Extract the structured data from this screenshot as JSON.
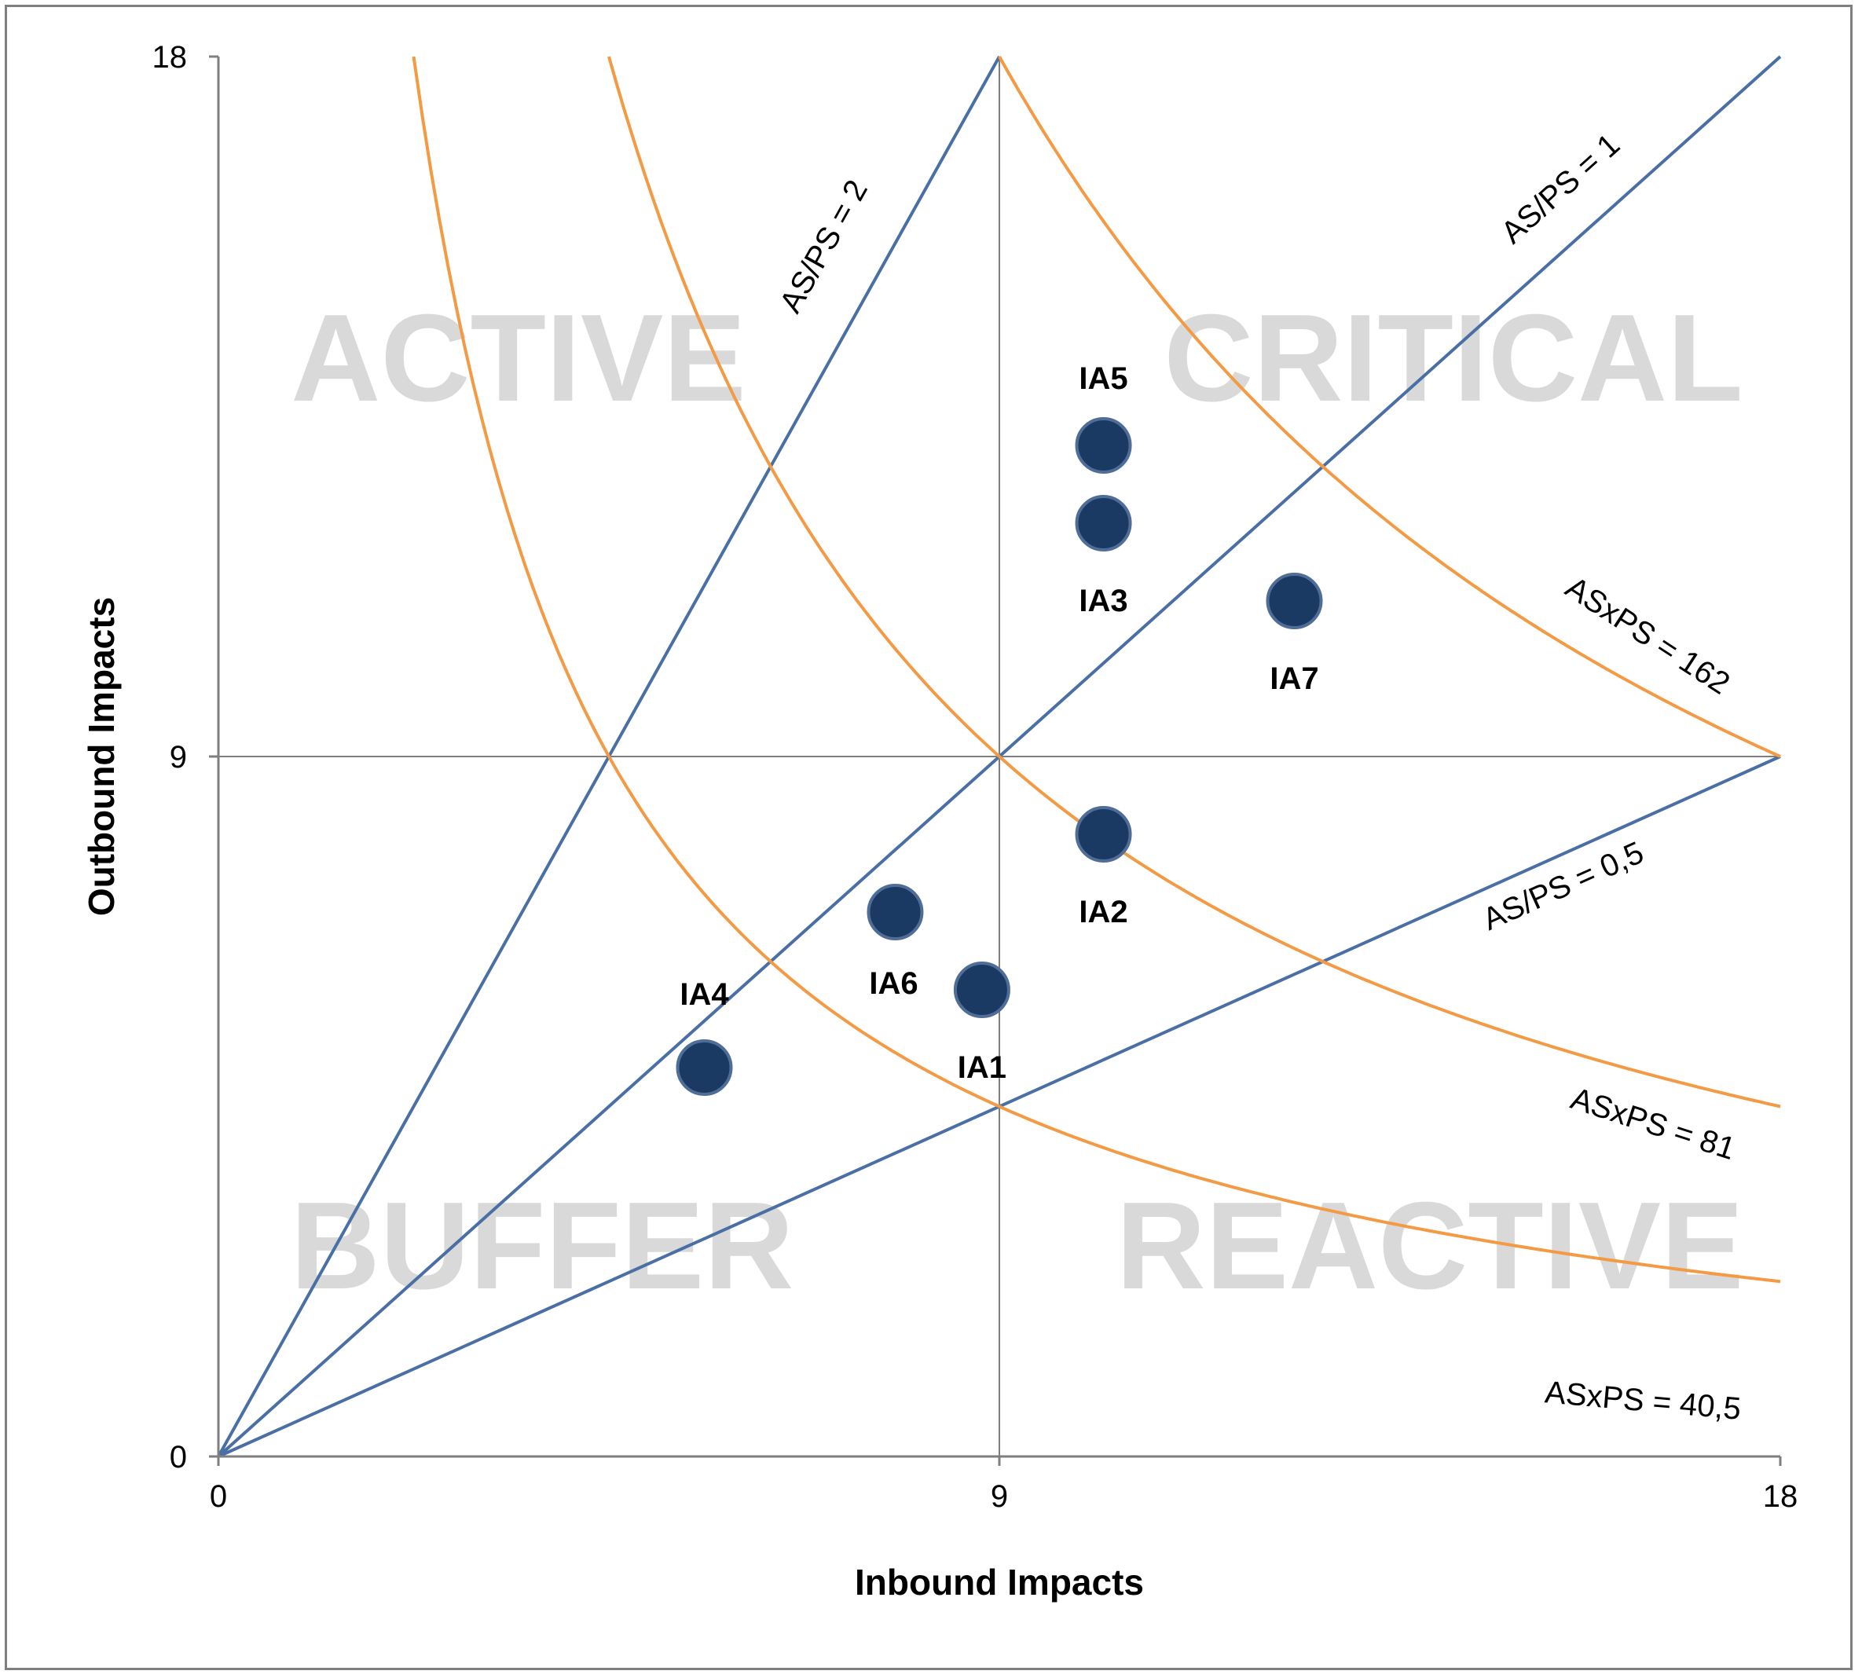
{
  "chart_data": {
    "type": "scatter",
    "xlabel": "Inbound Impacts",
    "ylabel": "Outbound Impacts",
    "xlim": [
      0,
      18
    ],
    "ylim": [
      0,
      18
    ],
    "xticks": [
      0,
      9,
      18
    ],
    "yticks": [
      0,
      9,
      18
    ],
    "quadrant_lines": {
      "x": 9,
      "y": 9
    },
    "colors": {
      "points": "#1b3a63",
      "ratio_lines": "#4a6fa5",
      "product_curves": "#f39a45",
      "quadrant_text": "#d9d9d9",
      "grid": "#7f7f7f"
    },
    "quadrant_labels": [
      {
        "text": "ACTIVE",
        "position": "top-left"
      },
      {
        "text": "CRITICAL",
        "position": "top-right"
      },
      {
        "text": "BUFFER",
        "position": "bottom-left"
      },
      {
        "text": "REACTIVE",
        "position": "bottom-right"
      }
    ],
    "ratio_lines": [
      {
        "label": "AS/PS = 2",
        "slope": 2
      },
      {
        "label": "AS/PS = 1",
        "slope": 1
      },
      {
        "label": "AS/PS = 0,5",
        "slope": 0.5
      }
    ],
    "product_curves": [
      {
        "label": "ASxPS = 162",
        "product": 162
      },
      {
        "label": "ASxPS = 81",
        "product": 81
      },
      {
        "label": "ASxPS = 40,5",
        "product": 40.5
      }
    ],
    "points": [
      {
        "label": "IA1",
        "x": 8.8,
        "y": 6.0
      },
      {
        "label": "IA2",
        "x": 10.2,
        "y": 8.0
      },
      {
        "label": "IA3",
        "x": 10.2,
        "y": 12.0
      },
      {
        "label": "IA4",
        "x": 5.6,
        "y": 5.0
      },
      {
        "label": "IA5",
        "x": 10.2,
        "y": 13.0
      },
      {
        "label": "IA6",
        "x": 7.8,
        "y": 7.0
      },
      {
        "label": "IA7",
        "x": 12.4,
        "y": 11.0
      }
    ]
  }
}
